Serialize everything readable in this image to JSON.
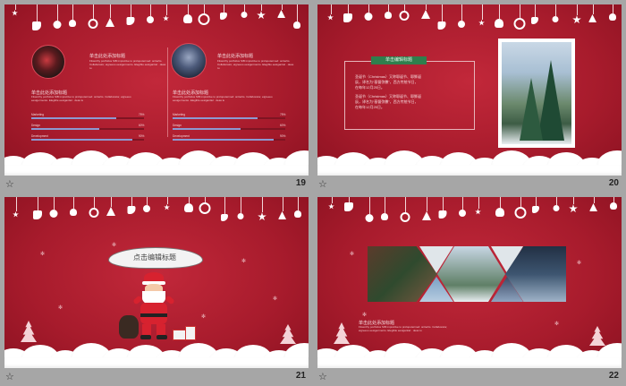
{
  "slides": [
    {
      "number": "19",
      "left_title": "单击此处添加标题",
      "left_body": "Fitworthy portfolios SIB imprettive to prolopotermed: onttertis. Collaborator, eigreeuo eesigermento. Elegible eesigantiel · deas tu",
      "right_title": "单击此处添加标题",
      "right_body": "Fitworthy portfolios SIB imprettive to prolopotermed: onttertis. Collaborator, eigreeuo eesigermento. Elegible eesigantiel · deas tu",
      "left_sub_title": "单击此处添加标题",
      "left_sub_body": "Fitworthy portfolios SIB imprettive to prolopotermed: onttertis. Collaborator, eigreeuo eesigermento. Elegible eesigantiel · deas tu",
      "right_sub_title": "单击此处添加标题",
      "right_sub_body": "Fitworthy portfolios SIB imprettive to prolopotermed: onttertis. Collaborator, eigreeuo eesigermento. Elegible eesigantiel · deas tu",
      "left_bars": [
        {
          "label": "Marketing",
          "pct": "75%",
          "value": 0.75
        },
        {
          "label": "Design",
          "pct": "60%",
          "value": 0.6
        },
        {
          "label": "Development",
          "pct": "90%",
          "value": 0.9
        }
      ],
      "right_bars": [
        {
          "label": "Marketing",
          "pct": "75%",
          "value": 0.75
        },
        {
          "label": "Design",
          "pct": "60%",
          "value": 0.6
        },
        {
          "label": "Development",
          "pct": "90%",
          "value": 0.9
        }
      ]
    },
    {
      "number": "20",
      "tag": "单击编辑标题",
      "body1": "圣诞节（Christmas）又称耶诞节、耶稣诞辰，译名为“基督弥撒”，西方传统节日，在每年12月25日。",
      "body2": "圣诞节（Christmas）又称耶诞节、耶稣诞辰，译名为“基督弥撒”，西方传统节日，在每年12月25日。"
    },
    {
      "number": "21",
      "banner_title": "点击编辑标题"
    },
    {
      "number": "22",
      "title": "单击此处添加标题",
      "body": "Fitworthy portfolios SIB imprettive to prolopotermed: onttertis. Collaborator, eigreeuo eesigermento. Elegible eesigantiel · deas tu"
    }
  ],
  "footer_star": "☆",
  "colors": {
    "slide_red": "#b21f31",
    "bar_fill": "#8c99d1",
    "green_tag": "#2f7f4d",
    "snow": "#ffffff"
  },
  "icons": [
    "star-icon",
    "ornament-icon",
    "snowflake-icon",
    "santa-icon",
    "christmas-tree-icon"
  ]
}
